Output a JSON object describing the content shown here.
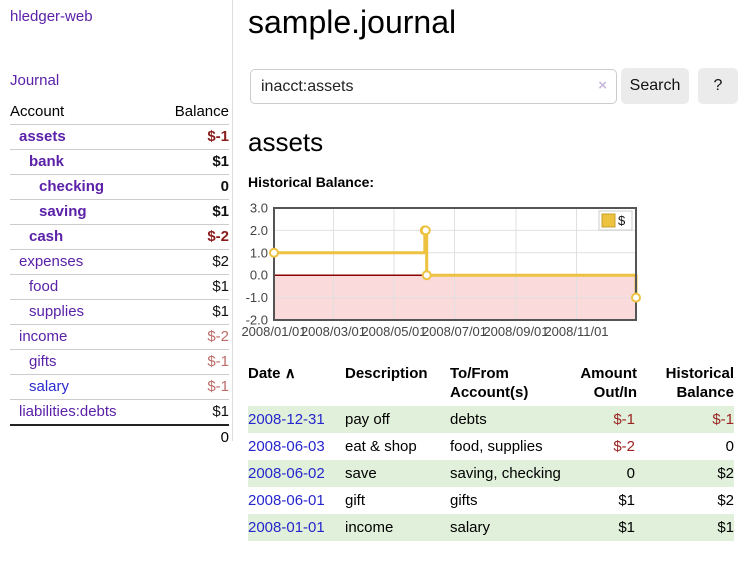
{
  "app": {
    "title": "hledger-web",
    "nav_journal": "Journal"
  },
  "colors": {
    "link_purple": "#5b21a8",
    "link_blue": "#2a2ad0",
    "negative_dark": "#8b1c1c",
    "negative_light": "#bd6d68",
    "negative_table": "#9b2422",
    "balance_black": "#111111",
    "row_green": "#e0f0da",
    "date_link": "#2626cc"
  },
  "sidebar": {
    "accounts_header": {
      "account": "Account",
      "balance": "Balance"
    },
    "accounts": [
      {
        "name": "assets",
        "indent": 1,
        "bold": true,
        "balance": "$-1",
        "negative": true,
        "link_color": "purple"
      },
      {
        "name": "bank",
        "indent": 2,
        "bold": true,
        "balance": "$1",
        "negative": false,
        "link_color": "purple"
      },
      {
        "name": "checking",
        "indent": 3,
        "bold": true,
        "balance": "0",
        "negative": false,
        "link_color": "purple"
      },
      {
        "name": "saving",
        "indent": 3,
        "bold": true,
        "balance": "$1",
        "negative": false,
        "link_color": "purple"
      },
      {
        "name": "cash",
        "indent": 2,
        "bold": true,
        "balance": "$-2",
        "negative": true,
        "link_color": "purple"
      },
      {
        "name": "expenses",
        "indent": 1,
        "bold": false,
        "balance": "$2",
        "negative": false,
        "link_color": "purple"
      },
      {
        "name": "food",
        "indent": 2,
        "bold": false,
        "balance": "$1",
        "negative": false,
        "link_color": "purple"
      },
      {
        "name": "supplies",
        "indent": 2,
        "bold": false,
        "balance": "$1",
        "negative": false,
        "link_color": "purple"
      },
      {
        "name": "income",
        "indent": 1,
        "bold": false,
        "balance": "$-2",
        "negative": true,
        "link_color": "purple"
      },
      {
        "name": "gifts",
        "indent": 2,
        "bold": false,
        "balance": "$-1",
        "negative": true,
        "link_color": "purple"
      },
      {
        "name": "salary",
        "indent": 2,
        "bold": false,
        "balance": "$-1",
        "negative": true,
        "link_color": "blue"
      },
      {
        "name": "liabilities:debts",
        "indent": 1,
        "bold": false,
        "balance": "$1",
        "negative": false,
        "link_color": "purple"
      }
    ],
    "total": "0"
  },
  "header": {
    "title": "sample.journal"
  },
  "search": {
    "value": "inacct:assets",
    "clear_icon": "×",
    "button": "Search",
    "help_button": "?"
  },
  "account_page": {
    "heading": "assets",
    "chart_label": "Historical Balance:"
  },
  "chart_data": {
    "type": "line",
    "step": true,
    "title": "Historical Balance:",
    "legend": {
      "label": "$",
      "position": "top-right"
    },
    "xlim": [
      "2008-01-01",
      "2008-12-31"
    ],
    "ylim": [
      -2,
      3
    ],
    "y_ticks": [
      3.0,
      2.0,
      1.0,
      0.0,
      -1.0,
      -2.0
    ],
    "x_ticks": [
      "2008/01/01",
      "2008/03/01",
      "2008/05/01",
      "2008/07/01",
      "2008/09/01",
      "2008/11/01"
    ],
    "series": [
      {
        "name": "$",
        "color": "#edc240",
        "points": [
          [
            "2008-01-01",
            1
          ],
          [
            "2008-06-01",
            2
          ],
          [
            "2008-06-02",
            2
          ],
          [
            "2008-06-03",
            0
          ],
          [
            "2008-12-31",
            -1
          ]
        ]
      }
    ],
    "colors": {
      "grid": "#e0e0e0",
      "border": "#545454",
      "zero_line": "#8b0000",
      "negative_band": "#fadada",
      "axis": "#444444",
      "legend_swatch_border": "#c5a02c",
      "point_fill": "#ffffff"
    }
  },
  "register": {
    "columns": {
      "date": "Date",
      "description": "Description",
      "accounts": "To/From Account(s)",
      "amount": "Amount Out/In",
      "balance": "Historical Balance"
    },
    "sort_icon": "∧",
    "transactions": [
      {
        "date": "2008-12-31",
        "description": "pay off",
        "accounts": "debts",
        "amount": "$-1",
        "amount_negative": true,
        "balance": "$-1",
        "balance_negative": true
      },
      {
        "date": "2008-06-03",
        "description": "eat & shop",
        "accounts": "food, supplies",
        "amount": "$-2",
        "amount_negative": true,
        "balance": "0",
        "balance_negative": false
      },
      {
        "date": "2008-06-02",
        "description": "save",
        "accounts": "saving, checking",
        "amount": "0",
        "amount_negative": false,
        "balance": "$2",
        "balance_negative": false
      },
      {
        "date": "2008-06-01",
        "description": "gift",
        "accounts": "gifts",
        "amount": "$1",
        "amount_negative": false,
        "balance": "$2",
        "balance_negative": false
      },
      {
        "date": "2008-01-01",
        "description": "income",
        "accounts": "salary",
        "amount": "$1",
        "amount_negative": false,
        "balance": "$1",
        "balance_negative": false
      }
    ]
  }
}
